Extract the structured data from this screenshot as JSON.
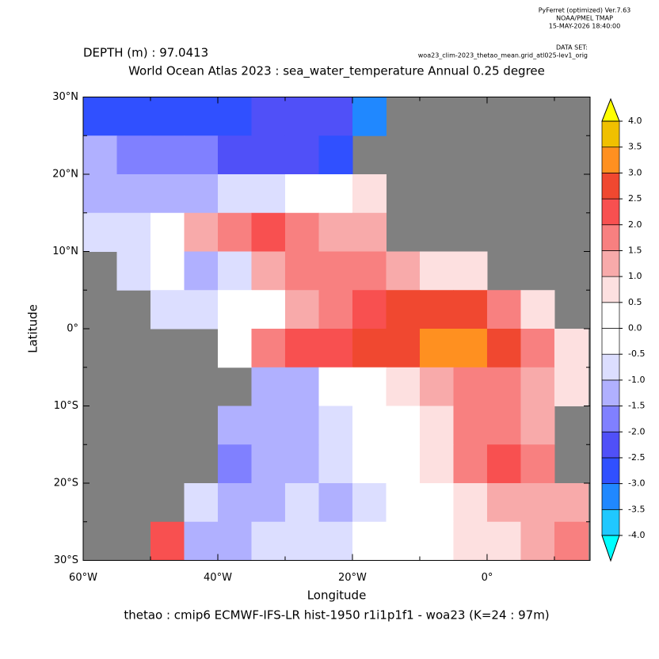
{
  "header": {
    "software": "PyFerret (optimized) Ver.7.63",
    "org": "NOAA/PMEL TMAP",
    "timestamp": "15-MAY-2026 18:40:00",
    "dataset_label": "DATA SET:",
    "dataset": "woa23_clim-2023_thetao_mean.grid_atl025-lev1_orig"
  },
  "chart_data": {
    "type": "heatmap",
    "subtitle": "DEPTH (m) : 97.0413",
    "title": "World Ocean Atlas 2023 : sea_water_temperature Annual  0.25 degree",
    "xlabel": "Longitude",
    "ylabel": "Latitude",
    "caption": "thetao : cmip6 ECMWF-IFS-LR hist-1950 r1i1p1f1 - woa23  (K=24 : 97m)",
    "xlim": [
      -60,
      15.3
    ],
    "ylim": [
      -30,
      30
    ],
    "xticks": [
      {
        "value": -60,
        "label": "60°W"
      },
      {
        "value": -40,
        "label": "40°W"
      },
      {
        "value": -20,
        "label": "20°W"
      },
      {
        "value": 0,
        "label": "0°"
      }
    ],
    "xminor": [
      -50,
      -30,
      -10,
      10
    ],
    "yticks": [
      {
        "value": 30,
        "label": "30°N"
      },
      {
        "value": 20,
        "label": "20°N"
      },
      {
        "value": 10,
        "label": "10°N"
      },
      {
        "value": 0,
        "label": "0°"
      },
      {
        "value": -10,
        "label": "10°S"
      },
      {
        "value": -20,
        "label": "20°S"
      },
      {
        "value": -30,
        "label": "30°S"
      }
    ],
    "yminor": [
      25,
      15,
      5,
      -5,
      -15,
      -25
    ],
    "land_color": "#808080",
    "lon": [
      -57.5,
      -52.5,
      -47.5,
      -42.5,
      -37.5,
      -32.5,
      -27.5,
      -22.5,
      -17.5,
      -12.5,
      -7.5,
      -2.5,
      2.5,
      7.5,
      12.5
    ],
    "lat": [
      27.5,
      22.5,
      17.5,
      12.5,
      7.5,
      2.5,
      -2.5,
      -7.5,
      -12.5,
      -17.5,
      -22.5,
      -27.5
    ],
    "values": [
      [
        -2.7,
        -2.7,
        -2.7,
        -2.7,
        -2.7,
        -2.5,
        -2.5,
        -2.5,
        -3.2,
        null,
        null,
        null,
        null,
        null,
        null
      ],
      [
        -1.5,
        -2,
        -2,
        -2,
        -2.2,
        -2.2,
        -2.5,
        -2.8,
        null,
        null,
        null,
        null,
        null,
        null,
        null
      ],
      [
        -1.2,
        -1.2,
        -1.5,
        -1.2,
        -1,
        -0.8,
        -0.5,
        0.2,
        0.8,
        null,
        null,
        null,
        null,
        null,
        null
      ],
      [
        -1,
        -0.8,
        -0.5,
        1,
        1.8,
        2.2,
        1.8,
        1.2,
        1,
        null,
        null,
        null,
        null,
        null,
        null
      ],
      [
        null,
        -1,
        -0.5,
        -1.2,
        -0.8,
        1.2,
        1.5,
        1.8,
        1.8,
        1.2,
        0.8,
        0.7,
        null,
        null,
        null
      ],
      [
        null,
        null,
        -0.8,
        -1,
        -0.5,
        0.3,
        1.2,
        1.8,
        2.2,
        2.5,
        2.8,
        2.5,
        1.5,
        0.8,
        null
      ],
      [
        null,
        null,
        null,
        null,
        -0.3,
        1.5,
        2.2,
        2.2,
        2.5,
        2.8,
        3.2,
        3,
        2.5,
        1.5,
        0.6
      ],
      [
        null,
        null,
        null,
        null,
        null,
        -1.5,
        -1.2,
        -0.5,
        0.3,
        0.8,
        1.2,
        1.5,
        1.8,
        1.2,
        0.5
      ],
      [
        null,
        null,
        null,
        null,
        -1.5,
        -1.2,
        -1.5,
        -1,
        -0.5,
        0.3,
        0.8,
        1.5,
        1.8,
        1.2,
        null
      ],
      [
        null,
        null,
        null,
        null,
        -2,
        -1.5,
        -1.2,
        -0.8,
        -0.2,
        0.3,
        0.8,
        1.8,
        2.2,
        1.5,
        null
      ],
      [
        null,
        null,
        null,
        -1,
        -1.2,
        -1.5,
        -1,
        -1.2,
        -0.8,
        -0.2,
        0.3,
        0.8,
        1,
        1.2,
        1
      ],
      [
        null,
        null,
        2,
        -1.5,
        -1.2,
        -1,
        -0.8,
        -0.8,
        -0.5,
        -0.3,
        0.2,
        0.5,
        0.8,
        1,
        1.5
      ]
    ],
    "colorbar": {
      "ticks": [
        {
          "value": -4,
          "label": "-4.0"
        },
        {
          "value": -3.5,
          "label": "-3.5"
        },
        {
          "value": -3,
          "label": "-3.0"
        },
        {
          "value": -2.5,
          "label": "-2.5"
        },
        {
          "value": -2,
          "label": "-2.0"
        },
        {
          "value": -1.5,
          "label": "-1.5"
        },
        {
          "value": -1,
          "label": "-1.0"
        },
        {
          "value": -0.5,
          "label": "-0.5"
        },
        {
          "value": 0,
          "label": "0.0"
        },
        {
          "value": 0.5,
          "label": "0.5"
        },
        {
          "value": 1,
          "label": "1.0"
        },
        {
          "value": 1.5,
          "label": "1.5"
        },
        {
          "value": 2,
          "label": "2.0"
        },
        {
          "value": 2.5,
          "label": "2.5"
        },
        {
          "value": 3,
          "label": "3.0"
        },
        {
          "value": 3.5,
          "label": "3.5"
        },
        {
          "value": 4,
          "label": "4.0"
        }
      ],
      "colors": [
        "#20c8ff",
        "#2088ff",
        "#3050ff",
        "#5050f8",
        "#8080ff",
        "#b0b0ff",
        "#dcdeff",
        "#ffffff",
        "#ffffff",
        "#fde0e0",
        "#f8aaaa",
        "#f88080",
        "#f85050",
        "#f04830",
        "#ff9020",
        "#f0c000"
      ],
      "under_color": "#00ffff",
      "over_color": "#ffff00"
    }
  }
}
